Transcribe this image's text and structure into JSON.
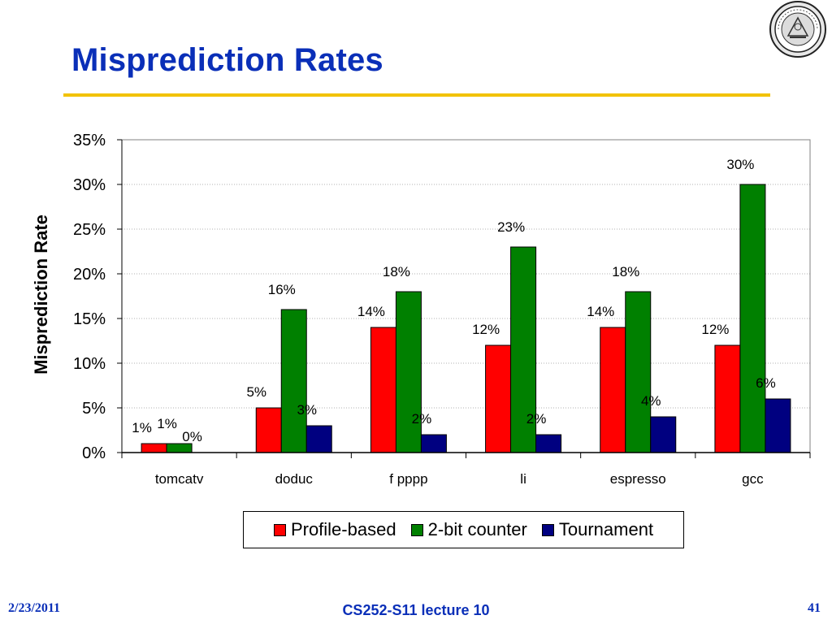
{
  "slide": {
    "title": "Misprediction Rates",
    "footer_date": "2/23/2011",
    "footer_course": "CS252-S11 lecture 10",
    "footer_page": "41"
  },
  "colors": {
    "title": "#0a2fb8",
    "rule": "#f2c200",
    "profile_based": "#ff0000",
    "two_bit_counter": "#008000",
    "tournament": "#000080"
  },
  "chart_data": {
    "type": "bar",
    "title": "",
    "xlabel": "",
    "ylabel": "Misprediction Rate",
    "ylim": [
      0,
      0.35
    ],
    "y_ticks": [
      0,
      0.05,
      0.1,
      0.15,
      0.2,
      0.25,
      0.3,
      0.35
    ],
    "y_tick_labels": [
      "0%",
      "5%",
      "10%",
      "15%",
      "20%",
      "25%",
      "30%",
      "35%"
    ],
    "grid": true,
    "legend_position": "bottom",
    "categories": [
      "tomcatv",
      "doduc",
      "fpppp",
      "li",
      "espresso",
      "gcc"
    ],
    "category_labels": [
      "tomcatv",
      "doduc",
      "f pppp",
      "li",
      "espresso",
      "gcc"
    ],
    "series": [
      {
        "name": "Profile-based",
        "color": "#ff0000",
        "values": [
          0.01,
          0.05,
          0.14,
          0.12,
          0.14,
          0.12
        ],
        "labels": [
          "1%",
          "5%",
          "14%",
          "12%",
          "14%",
          "12%"
        ]
      },
      {
        "name": "2-bit counter",
        "color": "#008000",
        "values": [
          0.01,
          0.16,
          0.18,
          0.23,
          0.18,
          0.3
        ],
        "labels": [
          "1%",
          "16%",
          "18%",
          "23%",
          "18%",
          "30%"
        ]
      },
      {
        "name": "Tournament",
        "color": "#000080",
        "values": [
          0.0,
          0.03,
          0.02,
          0.02,
          0.04,
          0.06
        ],
        "labels": [
          "0%",
          "3%",
          "2%",
          "2%",
          "4%",
          "6%"
        ]
      }
    ]
  }
}
